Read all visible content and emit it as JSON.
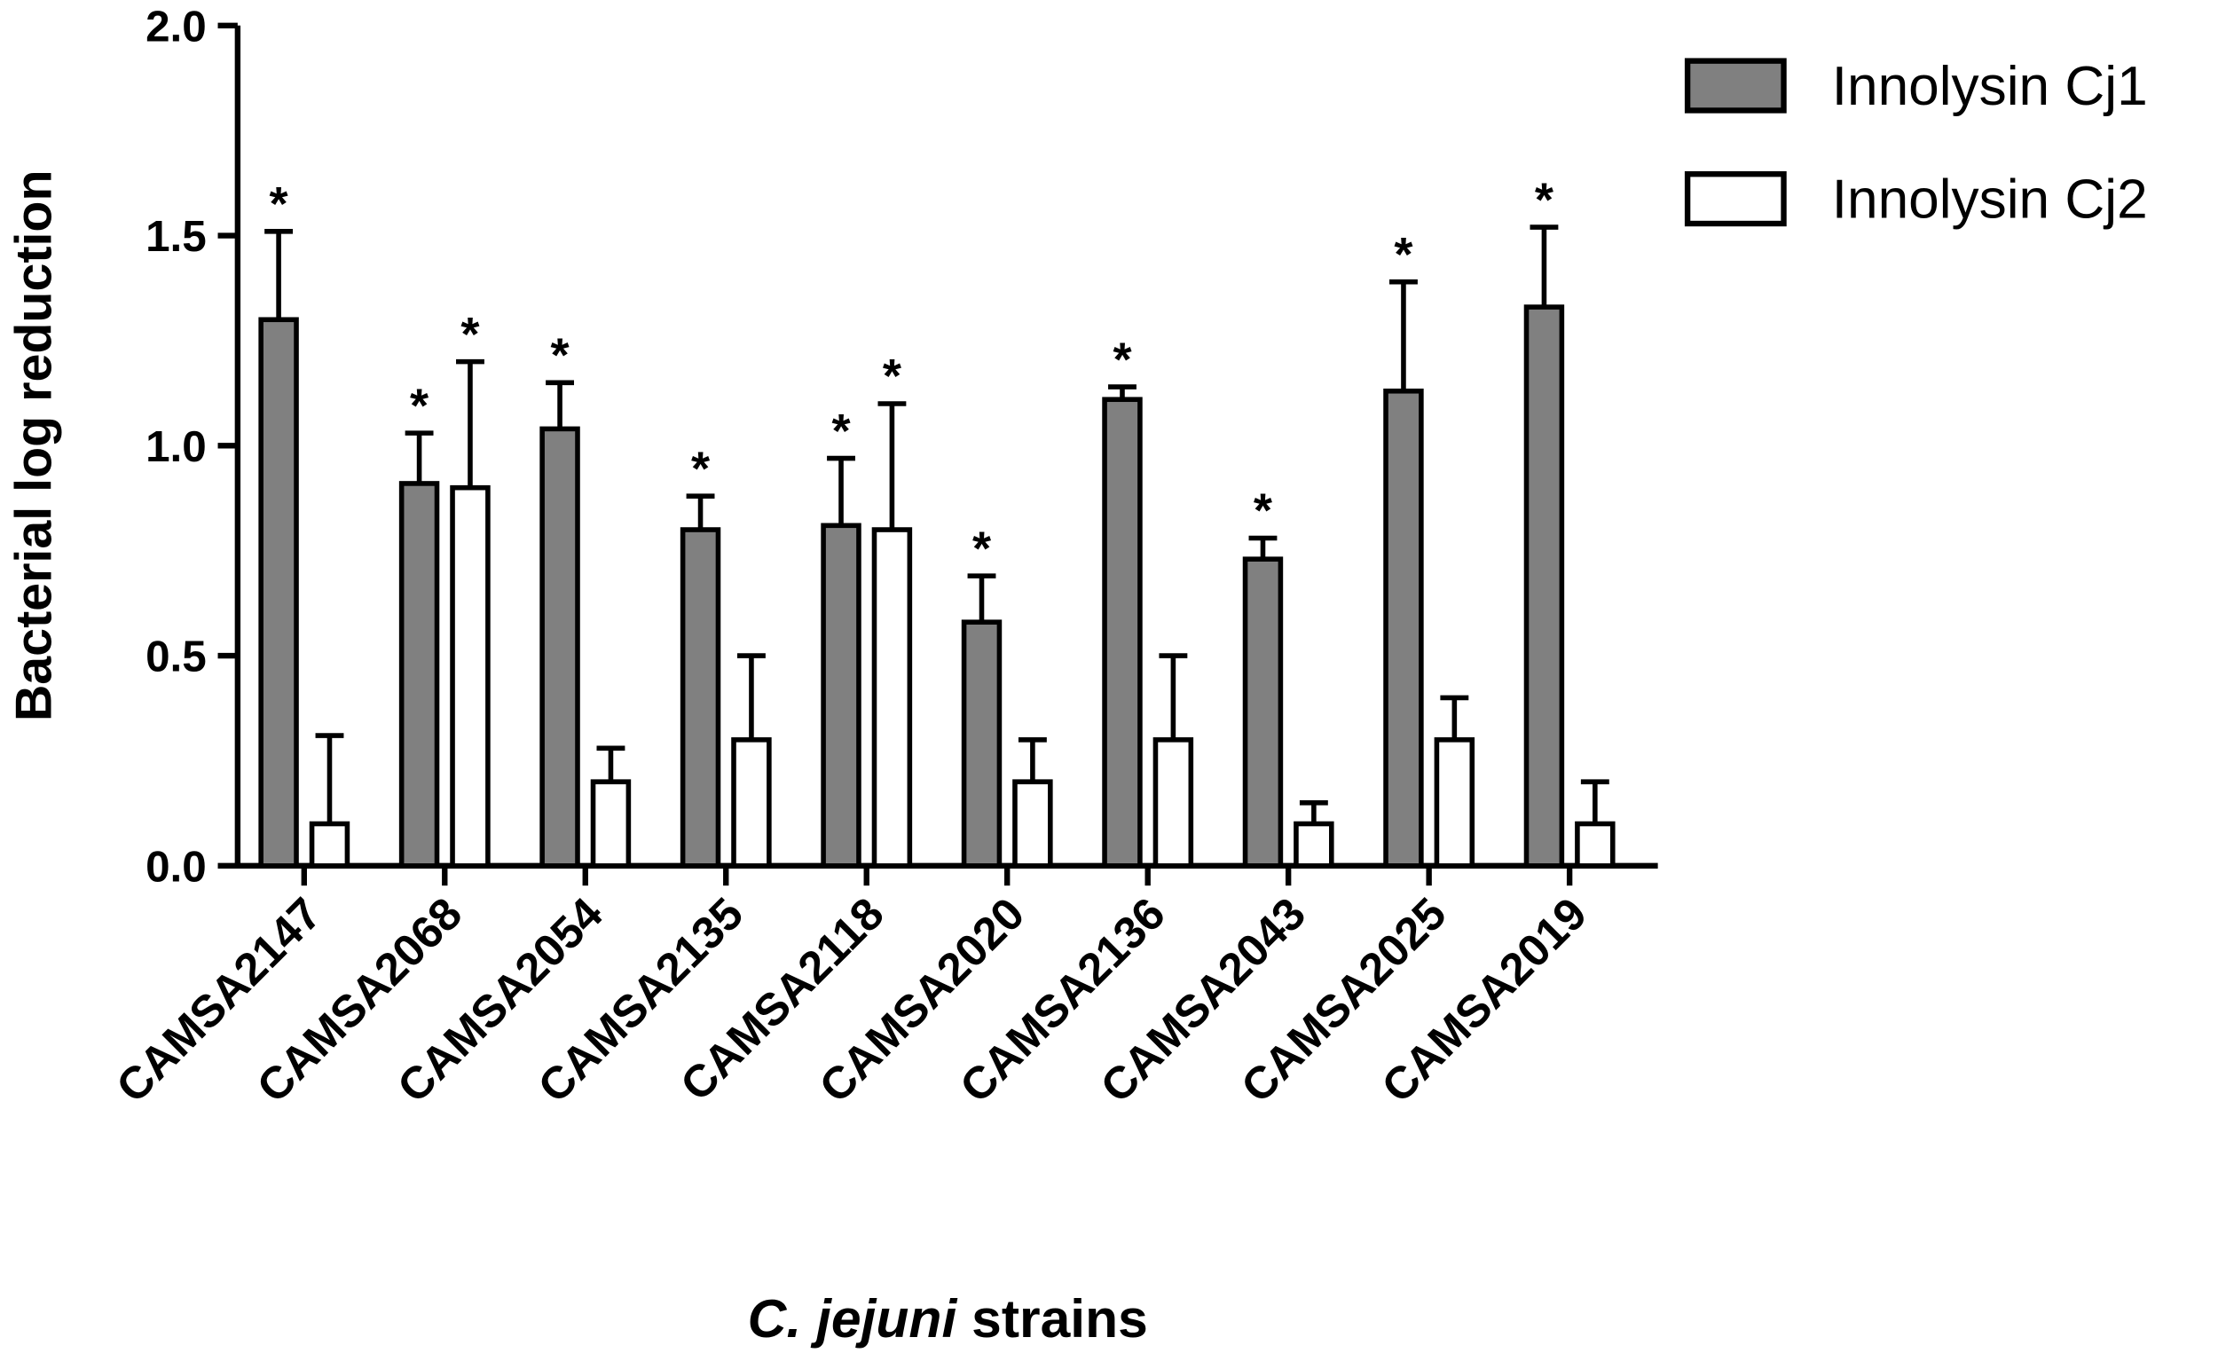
{
  "chart_data": {
    "type": "bar",
    "ylabel": "Bacterial log reduction",
    "xlabel_parts": [
      "C. jejuni",
      "strains"
    ],
    "categories": [
      "CAMSA2147",
      "CAMSA2068",
      "CAMSA2054",
      "CAMSA2135",
      "CAMSA2118",
      "CAMSA2020",
      "CAMSA2136",
      "CAMSA2043",
      "CAMSA2025",
      "CAMSA2019"
    ],
    "series": [
      {
        "name": "Innolysin Cj1",
        "color": "#808080",
        "values": [
          1.3,
          0.91,
          1.04,
          0.8,
          0.81,
          0.58,
          1.11,
          0.73,
          1.13,
          1.33
        ],
        "errors": [
          0.21,
          0.12,
          0.11,
          0.08,
          0.16,
          0.11,
          0.03,
          0.05,
          0.26,
          0.19
        ],
        "annotations": [
          "*",
          "*",
          "*",
          "*",
          "*",
          "*",
          "*",
          "*",
          "*",
          "*"
        ]
      },
      {
        "name": "Innolysin Cj2",
        "color": "#ffffff",
        "values": [
          0.1,
          0.9,
          0.2,
          0.3,
          0.8,
          0.2,
          0.3,
          0.1,
          0.3,
          0.1
        ],
        "errors": [
          0.21,
          0.3,
          0.08,
          0.2,
          0.3,
          0.1,
          0.2,
          0.05,
          0.1,
          0.1
        ],
        "annotations": [
          null,
          "*",
          null,
          null,
          "*",
          null,
          null,
          null,
          null,
          null
        ]
      }
    ],
    "ylim": [
      0,
      2
    ],
    "yticks": [
      {
        "value": 0,
        "label": "0.0"
      },
      0.5,
      {
        "value": 1,
        "label": "1.0"
      },
      1.5,
      {
        "value": 2,
        "label": "2.0"
      }
    ],
    "legend": "upper right"
  }
}
